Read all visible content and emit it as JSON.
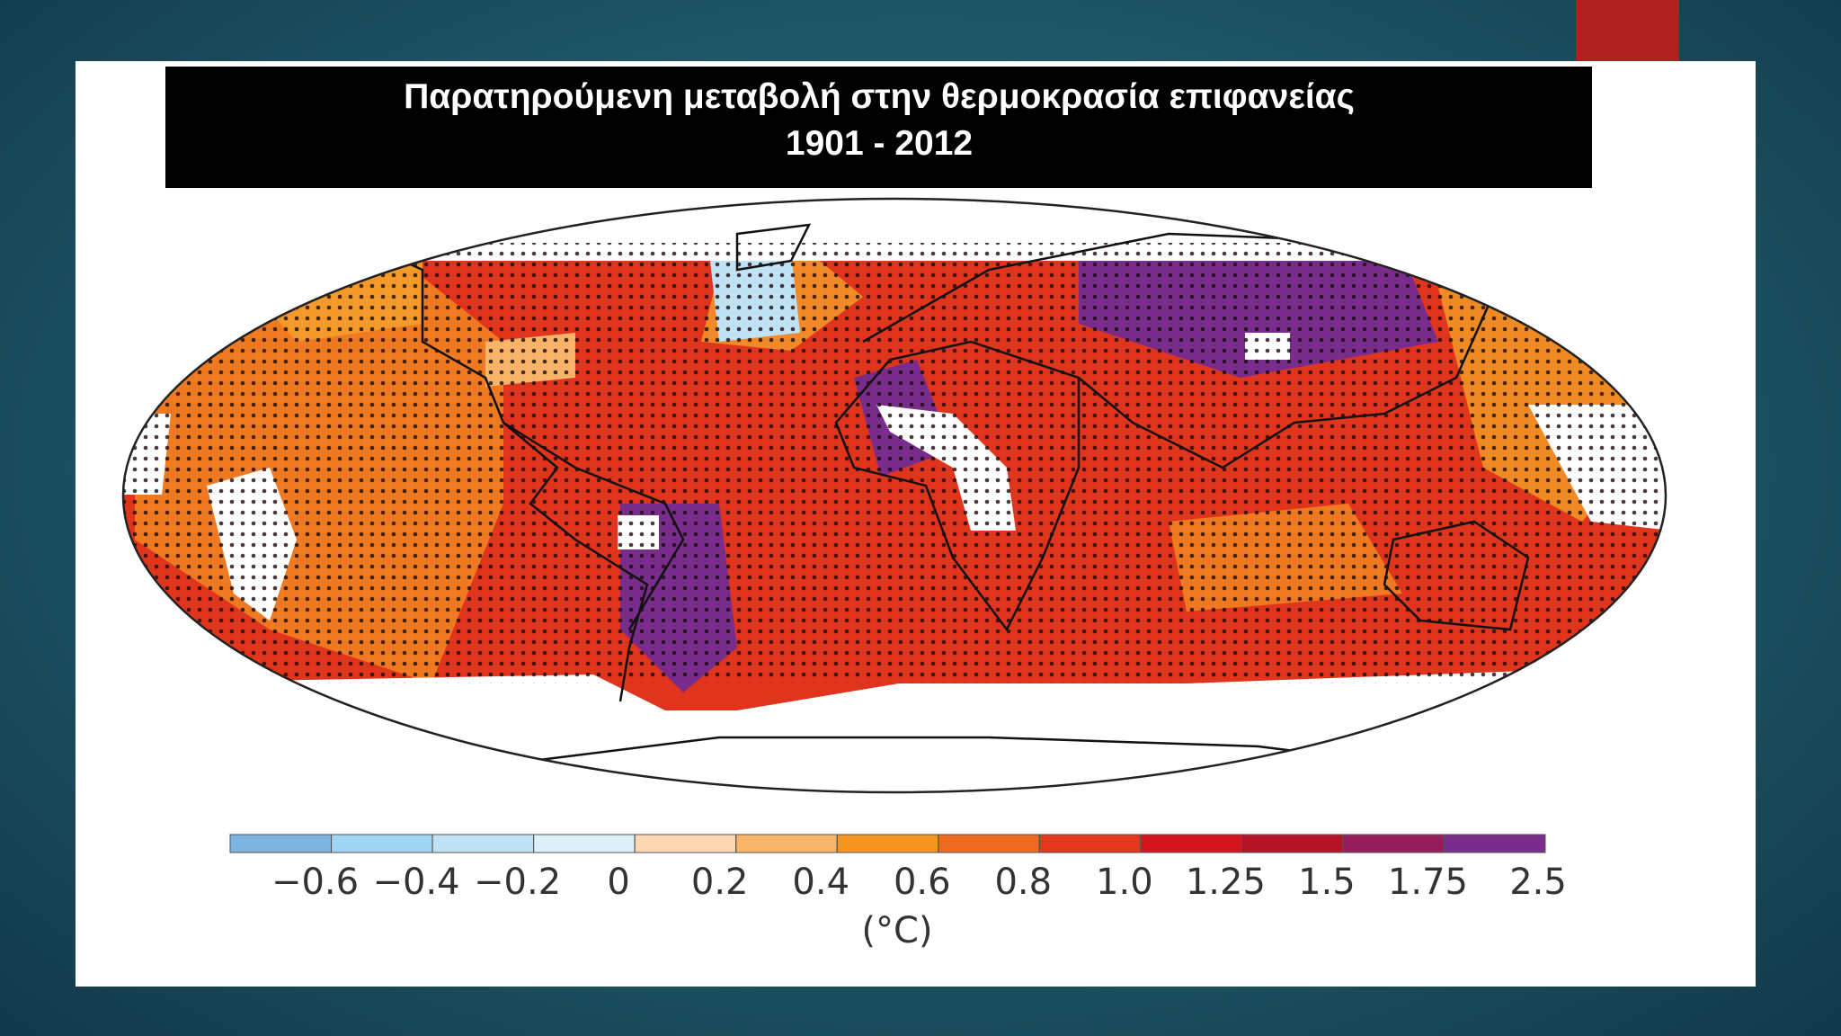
{
  "header": {
    "title": [
      "Παρατηρούμενη μεταβολή στην θερμοκρασία επιφανείας",
      "1901 - 2012"
    ]
  },
  "colorbar": {
    "colors": [
      "#7db4e0",
      "#9fd4f3",
      "#bfe3f5",
      "#ddf0f8",
      "#fcd8b2",
      "#f8b56a",
      "#f5951f",
      "#ee6a1f",
      "#e4381e",
      "#d5151d",
      "#b51426",
      "#951d5c",
      "#7a2c8c"
    ],
    "ticks": [
      {
        "value": -0.6,
        "label": "−0.6"
      },
      {
        "value": -0.4,
        "label": "−0.4"
      },
      {
        "value": -0.2,
        "label": "−0.2"
      },
      0,
      0.2,
      0.4,
      0.6,
      0.8,
      {
        "value": 1,
        "label": "1.0"
      },
      1.25,
      1.5,
      1.75,
      2.5
    ],
    "unit": "(°C)"
  }
}
